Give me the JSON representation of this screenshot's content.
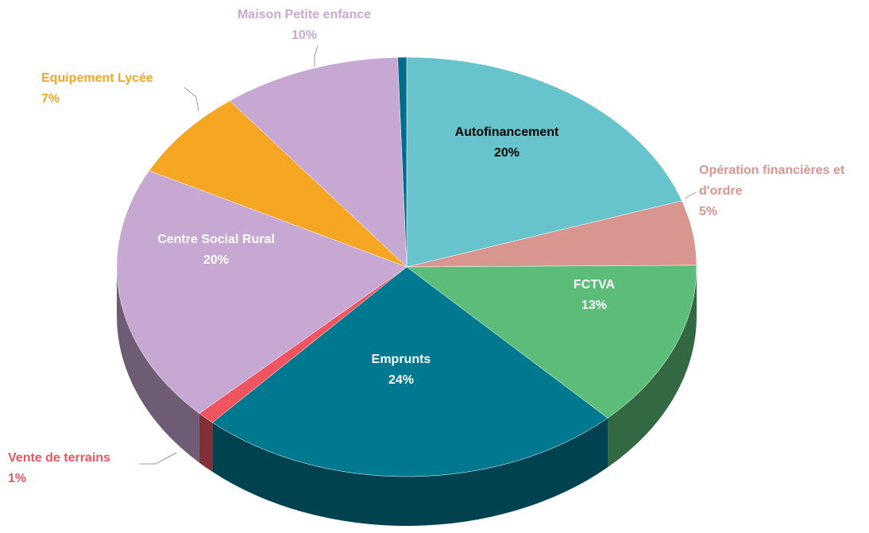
{
  "chart_data": {
    "type": "pie",
    "categories": [
      "Autofinancement",
      "Opération financières et d'ordre",
      "FCTVA",
      "Emprunts",
      "Vente de terrains",
      "Centre Social Rural",
      "Equipement Lycée",
      "Maison Petite enfance",
      null
    ],
    "values": [
      20,
      5,
      13,
      24,
      1,
      20,
      7,
      10,
      0.5
    ],
    "value_labels": [
      "20%",
      "5%",
      "13%",
      "24%",
      "1%",
      "20%",
      "7%",
      "10%",
      null
    ],
    "colors": [
      "#67c3cc",
      "#d9958f",
      "#5bbd78",
      "#00788f",
      "#ef5560",
      "#c7a8d2",
      "#f5a623",
      "#c7a8d2",
      "#006e8a"
    ]
  }
}
